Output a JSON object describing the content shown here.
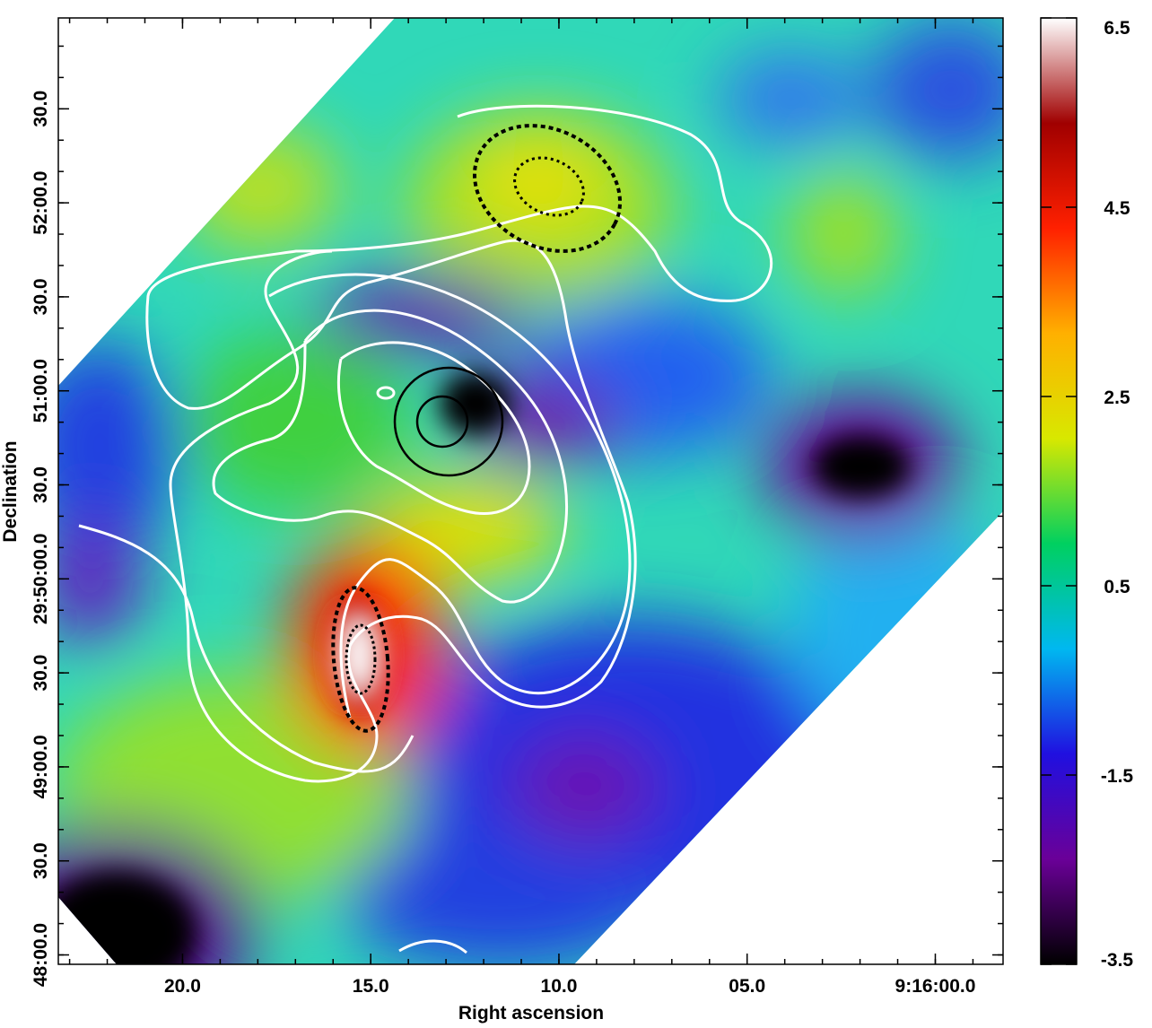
{
  "chart_data": {
    "type": "map",
    "xlabel": "Right ascension",
    "ylabel": "Declination",
    "xlim": [
      23.3,
      -1.8
    ],
    "xticks": [
      {
        "value": 20,
        "label": "20.0"
      },
      {
        "value": 15,
        "label": "15.0"
      },
      {
        "value": 10,
        "label": "10.0"
      },
      {
        "value": 5,
        "label": "05.0"
      },
      {
        "value": 0,
        "label": "9:16:00.0"
      }
    ],
    "ylim": [
      -3,
      299
    ],
    "yticks": [
      {
        "value": 0,
        "label": "48:00.0"
      },
      {
        "value": 30,
        "label": "30.0"
      },
      {
        "value": 60,
        "label": "49:00.0"
      },
      {
        "value": 90,
        "label": "30.0"
      },
      {
        "value": 120,
        "label": "29:50:00.0"
      },
      {
        "value": 150,
        "label": "30.0"
      },
      {
        "value": 180,
        "label": "51:00.0"
      },
      {
        "value": 210,
        "label": "30.0"
      },
      {
        "value": 240,
        "label": "52:00.0"
      },
      {
        "value": 270,
        "label": "30.0"
      }
    ],
    "clim": [
      -3.5,
      6.5
    ],
    "cticks": [
      6.5,
      4.5,
      2.5,
      0.5,
      -1.5,
      -3.5
    ],
    "colormap": [
      "#000000",
      "#6a0098",
      "#2010e0",
      "#00b8f0",
      "#00d060",
      "#d8e800",
      "#ffb000",
      "#ff2000",
      "#a00000",
      "#ffffff"
    ]
  }
}
